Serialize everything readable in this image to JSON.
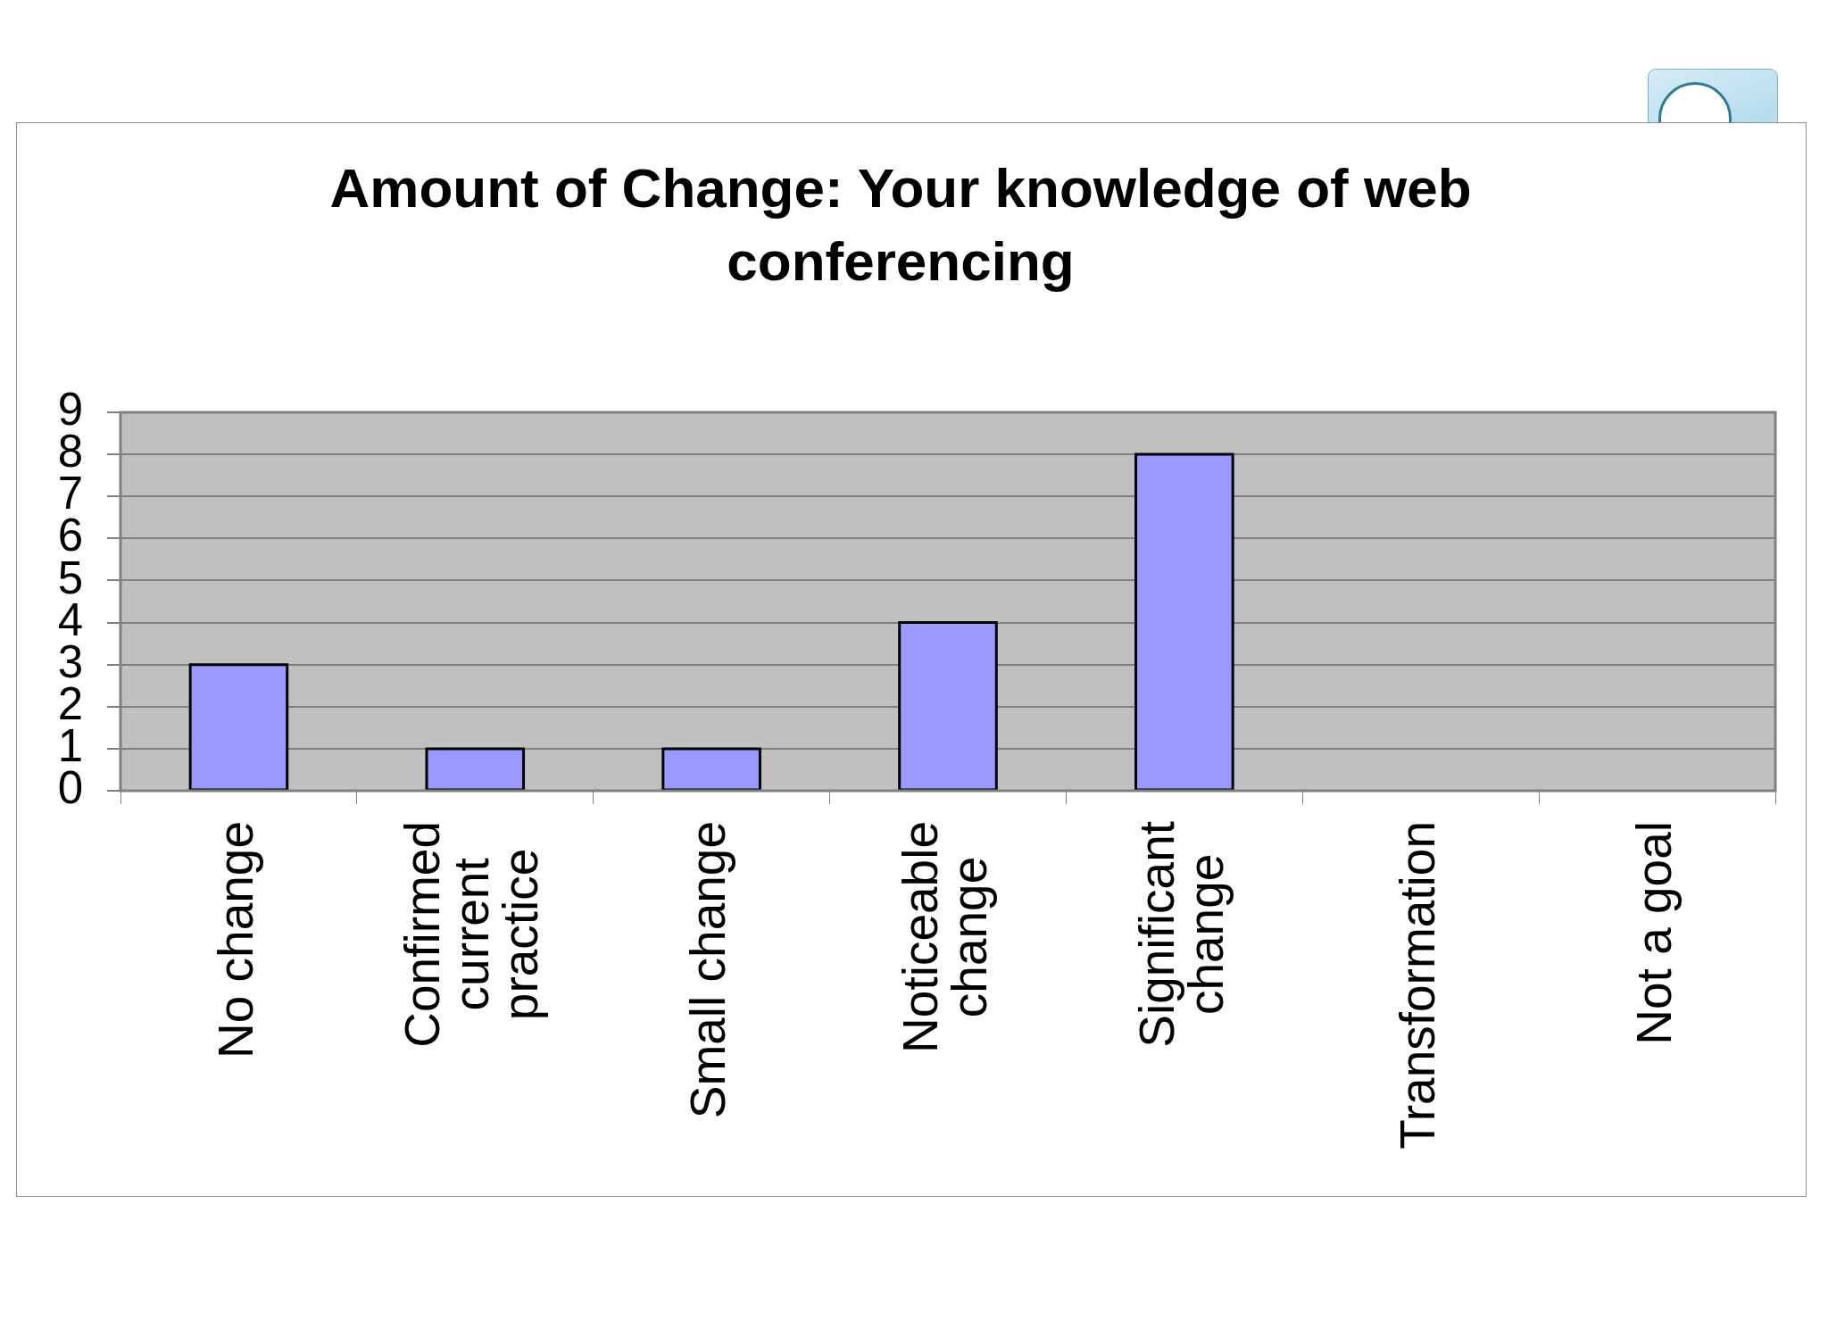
{
  "chart_data": {
    "type": "bar",
    "title": "Amount of Change: Your knowledge of web conferencing",
    "categories": [
      "No change",
      "Confirmed current practice",
      "Small change",
      "Noticeable change",
      "Significant change",
      "Transformation",
      "Not a goal"
    ],
    "values": [
      3,
      1,
      1,
      4,
      8,
      0,
      0
    ],
    "color": "#9999ff",
    "ylim": [
      0,
      9
    ],
    "yticks": [
      0,
      1,
      2,
      3,
      4,
      5,
      6,
      7,
      8,
      9
    ],
    "grid": "y"
  }
}
